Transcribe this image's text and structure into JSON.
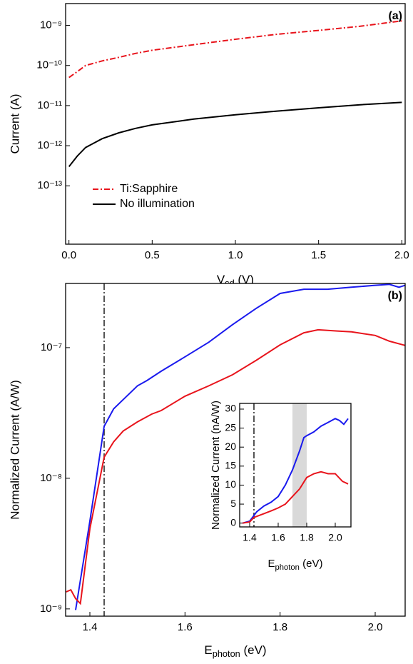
{
  "chart_data": [
    {
      "type": "line",
      "log_y": true,
      "annotation": "(a)",
      "legend": "lower left",
      "xlabel": [
        "V",
        "sd",
        " (V)"
      ],
      "ylabel": "Current (A)",
      "xlim": [
        -0.02,
        2.02
      ],
      "ylim": [
        3.5e-15,
        3.5e-09
      ],
      "xticks": [
        {
          "value": 0,
          "label": "0.0"
        },
        0.5,
        {
          "value": 1,
          "label": "1.0"
        },
        1.5,
        {
          "value": 2,
          "label": "2.0"
        }
      ],
      "yticks": [
        {
          "value": 1e-13,
          "label": "10⁻¹³"
        },
        {
          "value": 1e-12,
          "label": "10⁻¹²"
        },
        {
          "value": 1e-11,
          "label": "10⁻¹¹"
        },
        {
          "value": 1e-10,
          "label": "10⁻¹⁰"
        },
        {
          "value": 1e-09,
          "label": "10⁻⁹"
        }
      ],
      "x": [
        0,
        0.05,
        0.1,
        0.2,
        0.3,
        0.4,
        0.5,
        0.75,
        1.0,
        1.25,
        1.5,
        1.75,
        2.0
      ],
      "series": [
        {
          "name": "Ti:Sapphire",
          "color": "#e8141c",
          "dash": "dashdot",
          "values": [
            5e-11,
            7e-11,
            1e-10,
            1.3e-10,
            1.6e-10,
            2e-10,
            2.4e-10,
            3.3e-10,
            4.5e-10,
            6e-10,
            7.5e-10,
            9.5e-10,
            1.3e-09
          ]
        },
        {
          "name": "No illumination",
          "color": "#000000",
          "dash": "solid",
          "values": [
            3e-13,
            5.5e-13,
            9e-13,
            1.5e-12,
            2.1e-12,
            2.7e-12,
            3.3e-12,
            4.6e-12,
            5.9e-12,
            7.3e-12,
            8.8e-12,
            1.05e-11,
            1.2e-11
          ]
        }
      ]
    },
    {
      "type": "line",
      "log_y": true,
      "annotation": "(b)",
      "xlabel": [
        "E",
        "photon",
        " (eV)"
      ],
      "ylabel": "Normalized Current (A/W)",
      "xlim": [
        1.349,
        2.063
      ],
      "ylim": [
        8.8e-10,
        3.1e-07
      ],
      "xticks": [
        1.4,
        1.6,
        1.8,
        {
          "value": 2,
          "label": "2.0"
        }
      ],
      "yticks": [
        {
          "value": 1e-09,
          "label": "10⁻⁹"
        },
        {
          "value": 1e-08,
          "label": "10⁻⁸"
        },
        {
          "value": 1e-07,
          "label": "10⁻⁷"
        }
      ],
      "vline": 1.43,
      "series": [
        {
          "color": "#1a1aee",
          "dash": "solid",
          "x": [
            1.37,
            1.4,
            1.43,
            1.45,
            1.47,
            1.5,
            1.52,
            1.55,
            1.57,
            1.6,
            1.65,
            1.7,
            1.75,
            1.8,
            1.85,
            1.9,
            1.95,
            2.0,
            2.03,
            2.05,
            2.063
          ],
          "values": [
            9.8e-10,
            4.7e-09,
            2.5e-08,
            3.4e-08,
            4e-08,
            5.1e-08,
            5.6e-08,
            6.6e-08,
            7.3e-08,
            8.5e-08,
            1.1e-07,
            1.5e-07,
            2e-07,
            2.6e-07,
            2.8e-07,
            2.8e-07,
            2.9e-07,
            3e-07,
            3.05e-07,
            2.9e-07,
            3e-07
          ]
        },
        {
          "color": "#e8141c",
          "dash": "solid",
          "x": [
            1.35,
            1.36,
            1.37,
            1.38,
            1.4,
            1.43,
            1.45,
            1.47,
            1.5,
            1.53,
            1.55,
            1.6,
            1.65,
            1.7,
            1.75,
            1.8,
            1.85,
            1.88,
            1.92,
            1.95,
            2.0,
            2.03,
            2.063
          ],
          "values": [
            1.35e-09,
            1.4e-09,
            1.2e-09,
            1.1e-09,
            4.1e-09,
            1.45e-08,
            1.9e-08,
            2.3e-08,
            2.7e-08,
            3.1e-08,
            3.3e-08,
            4.25e-08,
            5.1e-08,
            6.2e-08,
            8e-08,
            1.05e-07,
            1.3e-07,
            1.37e-07,
            1.34e-07,
            1.32e-07,
            1.24e-07,
            1.12e-07,
            1.04e-07
          ]
        }
      ]
    },
    {
      "type": "line",
      "log_y": false,
      "xlabel": [
        "E",
        "photon",
        " (eV)"
      ],
      "ylabel": "Normalized Current (nA/W)",
      "xlim": [
        1.33,
        2.11
      ],
      "ylim": [
        -1,
        31.5
      ],
      "xticks": [
        1.4,
        1.6,
        1.8,
        {
          "value": 2,
          "label": "2.0"
        }
      ],
      "yticks": [
        0,
        5,
        10,
        15,
        20,
        25,
        30
      ],
      "vline": 1.43,
      "band": [
        1.7,
        1.8
      ],
      "series": [
        {
          "color": "#1a1aee",
          "dash": "solid",
          "x": [
            1.35,
            1.4,
            1.43,
            1.45,
            1.5,
            1.55,
            1.6,
            1.65,
            1.7,
            1.75,
            1.78,
            1.8,
            1.85,
            1.9,
            1.95,
            2.0,
            2.03,
            2.06,
            2.09
          ],
          "values": [
            0,
            0.5,
            2,
            3,
            4.5,
            5.5,
            7,
            10,
            14,
            19,
            22.5,
            23,
            24,
            25.5,
            26.5,
            27.5,
            27,
            26,
            27.5
          ]
        },
        {
          "color": "#e8141c",
          "dash": "solid",
          "x": [
            1.35,
            1.4,
            1.43,
            1.5,
            1.55,
            1.6,
            1.65,
            1.7,
            1.75,
            1.8,
            1.85,
            1.9,
            1.95,
            2.0,
            2.05,
            2.09
          ],
          "values": [
            0,
            0.3,
            1.5,
            2.5,
            3.2,
            4,
            5,
            7,
            9,
            12,
            13,
            13.5,
            13,
            13,
            11,
            10.3
          ]
        }
      ]
    }
  ]
}
